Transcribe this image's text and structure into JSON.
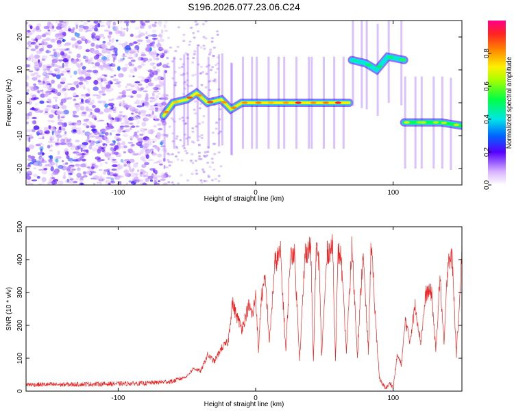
{
  "title": "S196.2026.077.23.06.C24",
  "chart_data": [
    {
      "type": "heatmap",
      "xlabel": "Height of straight line (km)",
      "ylabel": "Frequency (Hz)",
      "xlim": [
        -167,
        150
      ],
      "ylim": [
        -25,
        25
      ],
      "xticks": [
        -100,
        0,
        100
      ],
      "yticks": [
        -20,
        -10,
        0,
        10,
        20
      ],
      "colorbar": {
        "label": "Normalized spectral amplitude",
        "range": [
          0,
          1
        ],
        "ticks": [
          0.0,
          0.2,
          0.4,
          0.6,
          0.8
        ]
      },
      "traces": [
        {
          "name": "noise-region",
          "x_from": -167,
          "x_to": -65,
          "freq_from": -25,
          "freq_to": 25,
          "amplitude": 0.18
        },
        {
          "name": "main-carrier",
          "points": [
            [
              -67,
              -4
            ],
            [
              -60,
              0
            ],
            [
              -50,
              1
            ],
            [
              -43,
              3
            ],
            [
              -35,
              0
            ],
            [
              -25,
              1
            ],
            [
              -18,
              -2
            ],
            [
              -10,
              0
            ],
            [
              0,
              0
            ],
            [
              20,
              0
            ],
            [
              40,
              0
            ],
            [
              68,
              0
            ]
          ],
          "amplitude": 0.95
        },
        {
          "name": "shifted-carrier-high",
          "points": [
            [
              70,
              13
            ],
            [
              80,
              12
            ],
            [
              88,
              10
            ],
            [
              96,
              14
            ],
            [
              108,
              13
            ]
          ],
          "amplitude": 0.55
        },
        {
          "name": "shifted-carrier-low",
          "points": [
            [
              108,
              -6
            ],
            [
              120,
              -6
            ],
            [
              135,
              -6
            ],
            [
              150,
              -7
            ]
          ],
          "amplitude": 0.7
        }
      ]
    },
    {
      "type": "line",
      "xlabel": "Height of straight line (km)",
      "ylabel": "SNR (10 * v/v)",
      "xlim": [
        -167,
        150
      ],
      "ylim": [
        0,
        500
      ],
      "xticks": [
        -100,
        0,
        100
      ],
      "yticks": [
        0,
        100,
        200,
        300,
        400,
        500
      ],
      "series": [
        {
          "name": "SNR",
          "color": "#ee2222",
          "x": [
            -167,
            -140,
            -110,
            -80,
            -60,
            -50,
            -45,
            -40,
            -35,
            -30,
            -25,
            -20,
            -17,
            -14,
            -10,
            -5,
            -2,
            0,
            2,
            4,
            7,
            10,
            14,
            18,
            22,
            25,
            28,
            32,
            36,
            40,
            42,
            44,
            46,
            48,
            52,
            56,
            58,
            60,
            62,
            66,
            70,
            74,
            78,
            82,
            84,
            86,
            88,
            90,
            92,
            95,
            98,
            100,
            103,
            106,
            109,
            112,
            116,
            120,
            124,
            128,
            131,
            134,
            137,
            140,
            143,
            146,
            150
          ],
          "values": [
            20,
            20,
            22,
            24,
            30,
            45,
            70,
            60,
            110,
            90,
            130,
            150,
            270,
            230,
            190,
            260,
            230,
            300,
            120,
            280,
            340,
            150,
            390,
            420,
            120,
            400,
            430,
            100,
            420,
            440,
            90,
            430,
            400,
            110,
            420,
            440,
            100,
            420,
            410,
            120,
            440,
            110,
            420,
            120,
            460,
            300,
            160,
            40,
            20,
            10,
            25,
            10,
            110,
            80,
            220,
            150,
            260,
            150,
            300,
            300,
            120,
            350,
            140,
            410,
            400,
            110,
            420
          ]
        }
      ]
    }
  ]
}
